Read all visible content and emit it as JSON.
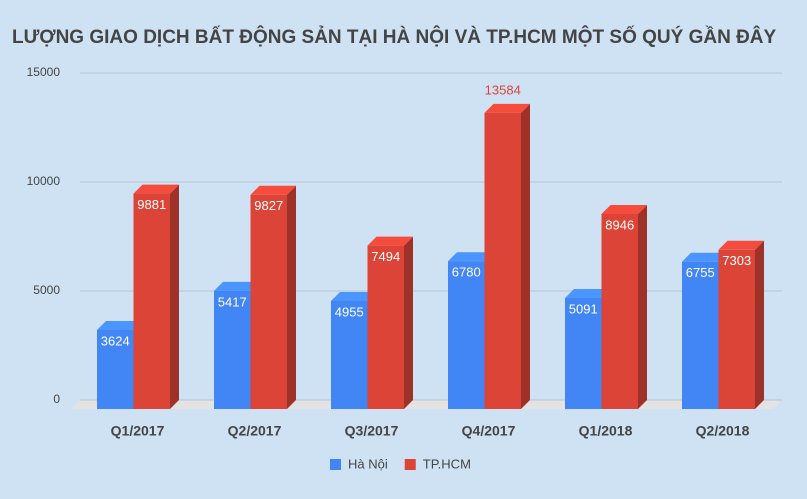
{
  "chart_data": {
    "type": "bar3d",
    "title": "LƯỢNG GIAO DỊCH BẤT ĐỘNG SẢN TẠI HÀ NỘI VÀ TP.HCM MỘT SỐ QUÝ GẦN ĐÂY",
    "categories": [
      "Q1/2017",
      "Q2/2017",
      "Q3/2017",
      "Q4/2017",
      "Q1/2018",
      "Q2/2018"
    ],
    "series": [
      {
        "name": "Hà Nội",
        "color": "#4285f4",
        "values": [
          3624,
          5417,
          4955,
          6780,
          5091,
          6755
        ]
      },
      {
        "name": "TP.HCM",
        "color": "#db4437",
        "values": [
          9881,
          9827,
          7494,
          13584,
          8946,
          7303
        ]
      }
    ],
    "ylim": [
      0,
      15000
    ],
    "yticks": [
      0,
      5000,
      10000,
      15000
    ],
    "grid": true,
    "legend": "bottom"
  }
}
